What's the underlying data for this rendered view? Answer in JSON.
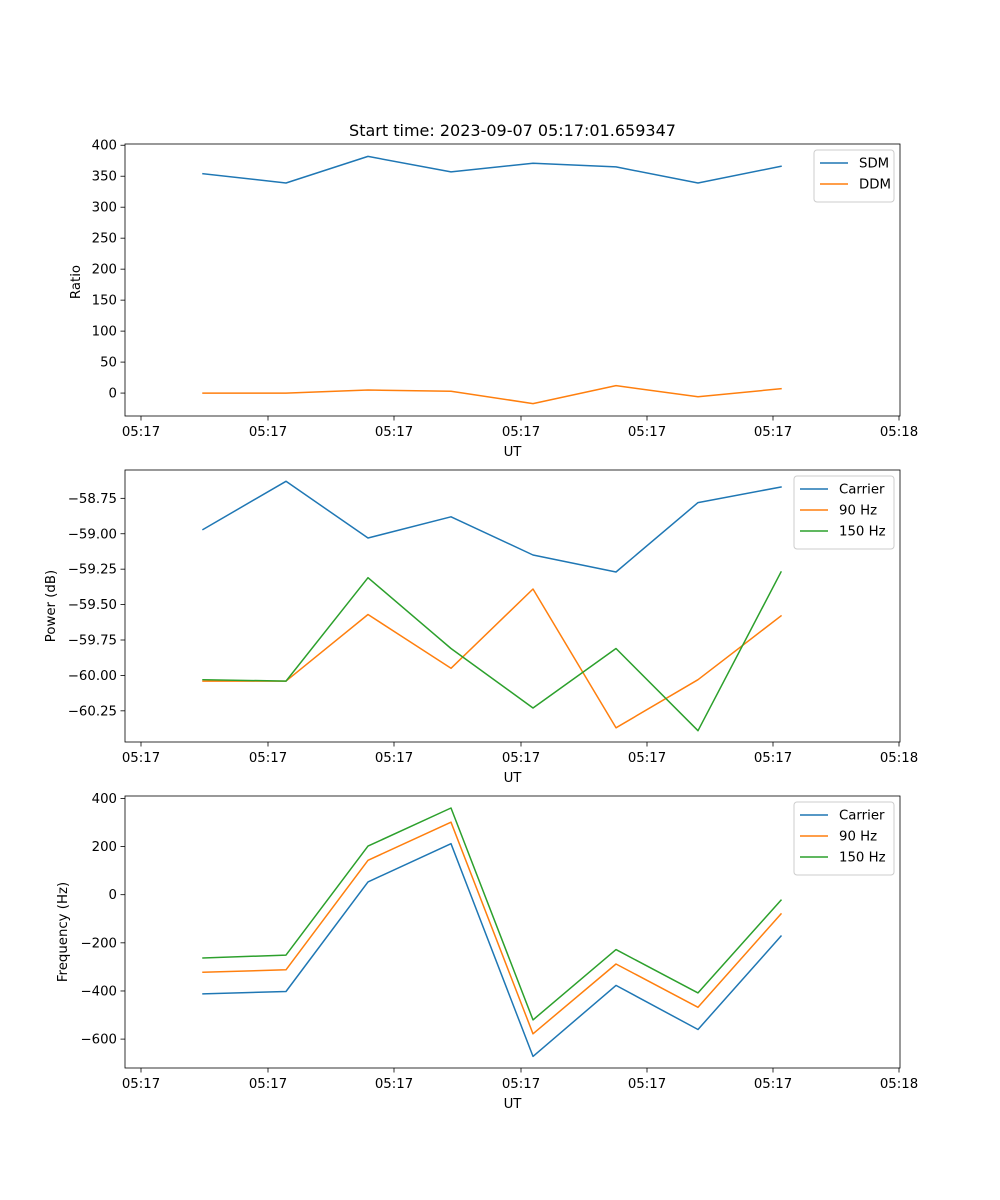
{
  "chart_data": [
    {
      "type": "line",
      "title": "Start time: 2023-09-07 05:17:01.659347",
      "xlabel": "UT",
      "ylabel": "Ratio",
      "x_tick_labels": [
        "05:17",
        "05:17",
        "05:17",
        "05:17",
        "05:17",
        "05:17",
        "05:18"
      ],
      "ylim": [
        -37,
        402
      ],
      "yticks": [
        0,
        50,
        100,
        150,
        200,
        250,
        300,
        350,
        400
      ],
      "ytick_labels": [
        "0",
        "50",
        "100",
        "150",
        "200",
        "250",
        "300",
        "350",
        "400"
      ],
      "legend_position": "top-right",
      "series": [
        {
          "name": "SDM",
          "color": "#1f77b4",
          "values": [
            354,
            339,
            382,
            357,
            371,
            365,
            339,
            366
          ]
        },
        {
          "name": "DDM",
          "color": "#ff7f0e",
          "values": [
            0,
            0,
            5,
            3,
            -17,
            12,
            -6,
            7
          ]
        }
      ]
    },
    {
      "type": "line",
      "title": "",
      "xlabel": "UT",
      "ylabel": "Power (dB)",
      "x_tick_labels": [
        "05:17",
        "05:17",
        "05:17",
        "05:17",
        "05:17",
        "05:17",
        "05:18"
      ],
      "ylim": [
        -60.47,
        -58.55
      ],
      "yticks": [
        -60.25,
        -60.0,
        -59.75,
        -59.5,
        -59.25,
        -59.0,
        -58.75
      ],
      "ytick_labels": [
        "−60.25",
        "−60.00",
        "−59.75",
        "−59.50",
        "−59.25",
        "−59.00",
        "−58.75"
      ],
      "legend_position": "top-right",
      "series": [
        {
          "name": "Carrier",
          "color": "#1f77b4",
          "values": [
            -58.97,
            -58.63,
            -59.03,
            -58.88,
            -59.15,
            -59.27,
            -58.78,
            -58.67
          ]
        },
        {
          "name": "90 Hz",
          "color": "#ff7f0e",
          "values": [
            -60.04,
            -60.04,
            -59.57,
            -59.95,
            -59.39,
            -60.37,
            -60.03,
            -59.58
          ]
        },
        {
          "name": "150 Hz",
          "color": "#2ca02c",
          "values": [
            -60.03,
            -60.04,
            -59.31,
            -59.81,
            -60.23,
            -59.81,
            -60.39,
            -59.27
          ]
        }
      ]
    },
    {
      "type": "line",
      "title": "",
      "xlabel": "UT",
      "ylabel": "Frequency (Hz)",
      "x_tick_labels": [
        "05:17",
        "05:17",
        "05:17",
        "05:17",
        "05:17",
        "05:17",
        "05:18"
      ],
      "ylim": [
        -720,
        410
      ],
      "yticks": [
        -600,
        -400,
        -200,
        0,
        200,
        400
      ],
      "ytick_labels": [
        "−600",
        "−400",
        "−200",
        "0",
        "200",
        "400"
      ],
      "legend_position": "top-right",
      "series": [
        {
          "name": "Carrier",
          "color": "#1f77b4",
          "values": [
            -412,
            -402,
            53,
            212,
            -672,
            -377,
            -560,
            -172
          ]
        },
        {
          "name": "90 Hz",
          "color": "#ff7f0e",
          "values": [
            -322,
            -312,
            143,
            301,
            -578,
            -288,
            -468,
            -80
          ]
        },
        {
          "name": "150 Hz",
          "color": "#2ca02c",
          "values": [
            -263,
            -251,
            202,
            360,
            -520,
            -228,
            -408,
            -23
          ]
        }
      ]
    }
  ]
}
